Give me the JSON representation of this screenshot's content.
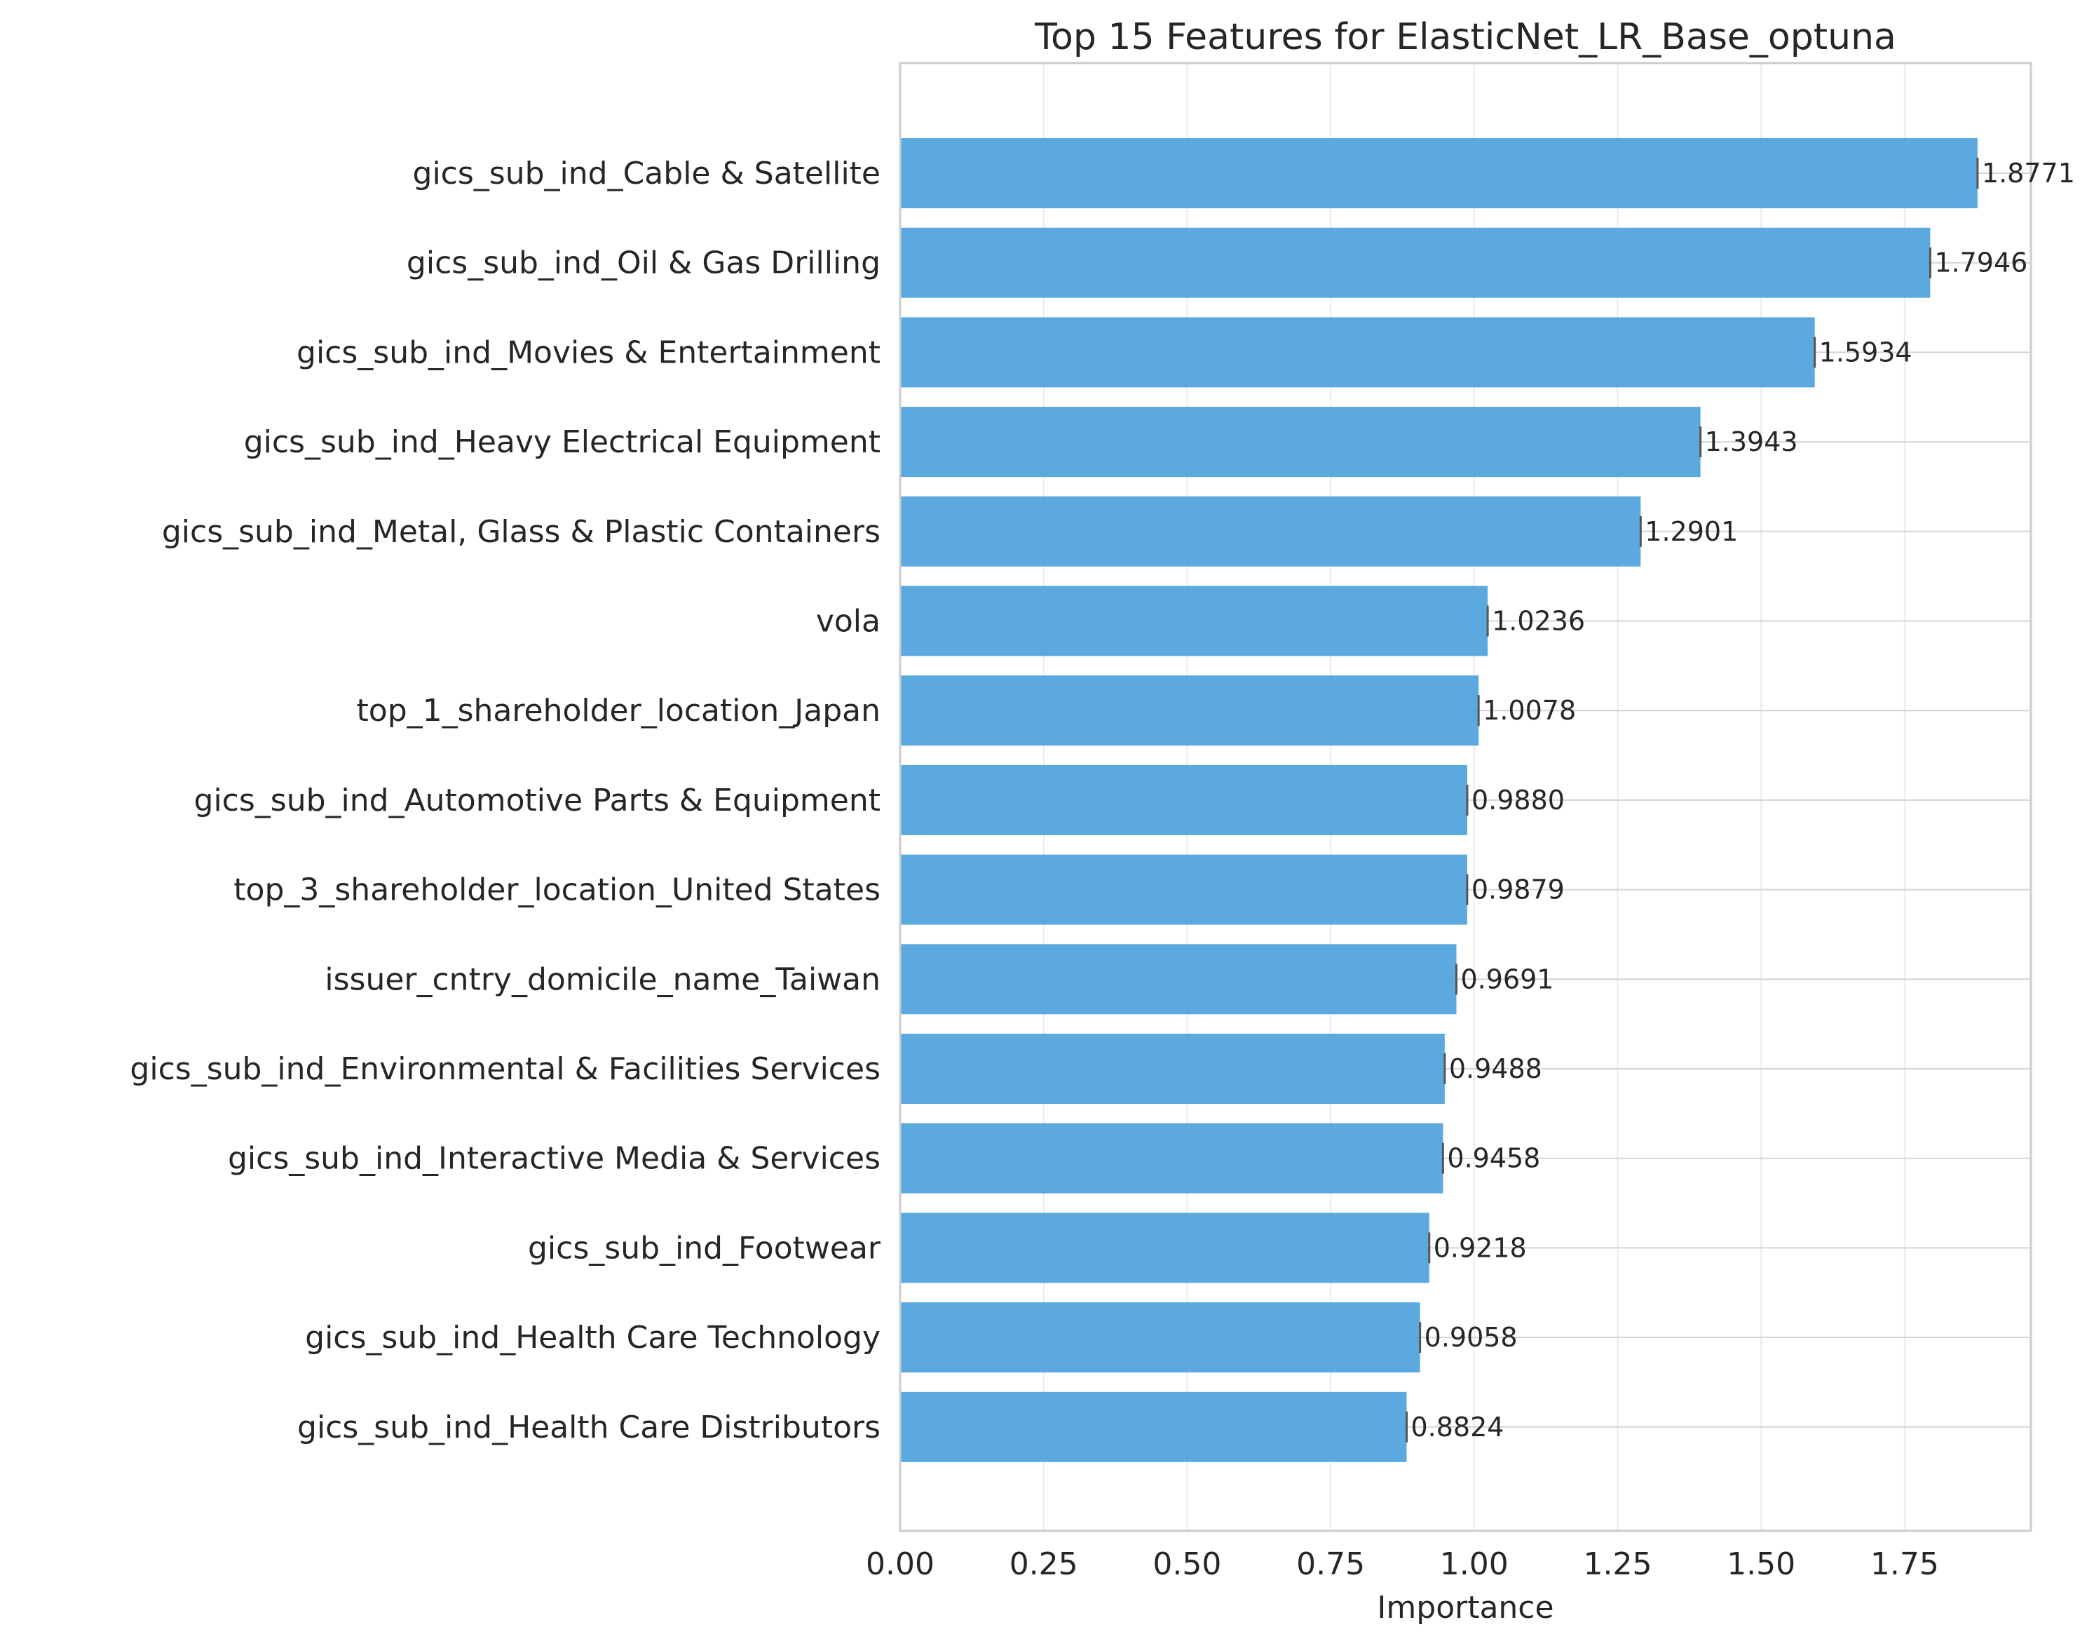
{
  "chart_data": {
    "type": "bar",
    "orientation": "horizontal",
    "title": "Top 15 Features for ElasticNet_LR_Base_optuna",
    "xlabel": "Importance",
    "ylabel": "",
    "xlim": [
      0,
      1.97
    ],
    "xticks": [
      "0.00",
      "0.25",
      "0.50",
      "0.75",
      "1.00",
      "1.25",
      "1.50",
      "1.75"
    ],
    "xtick_values": [
      0,
      0.25,
      0.5,
      0.75,
      1.0,
      1.25,
      1.5,
      1.75
    ],
    "grid": true,
    "bar_color": "#4aa0dc",
    "categories": [
      "gics_sub_ind_Cable & Satellite",
      "gics_sub_ind_Oil & Gas Drilling",
      "gics_sub_ind_Movies & Entertainment",
      "gics_sub_ind_Heavy Electrical Equipment",
      "gics_sub_ind_Metal, Glass & Plastic Containers",
      "vola",
      "top_1_shareholder_location_Japan",
      "gics_sub_ind_Automotive Parts & Equipment",
      "top_3_shareholder_location_United States",
      "issuer_cntry_domicile_name_Taiwan",
      "gics_sub_ind_Environmental & Facilities Services",
      "gics_sub_ind_Interactive Media & Services",
      "gics_sub_ind_Footwear",
      "gics_sub_ind_Health Care Technology",
      "gics_sub_ind_Health Care Distributors"
    ],
    "values": [
      1.8771,
      1.7946,
      1.5934,
      1.3943,
      1.2901,
      1.0236,
      1.0078,
      0.988,
      0.9879,
      0.9691,
      0.9488,
      0.9458,
      0.9218,
      0.9058,
      0.8824
    ],
    "value_labels": [
      "1.8771",
      "1.7946",
      "1.5934",
      "1.3943",
      "1.2901",
      "1.0236",
      "1.0078",
      "0.9880",
      "0.9879",
      "0.9691",
      "0.9488",
      "0.9458",
      "0.9218",
      "0.9058",
      "0.8824"
    ]
  }
}
